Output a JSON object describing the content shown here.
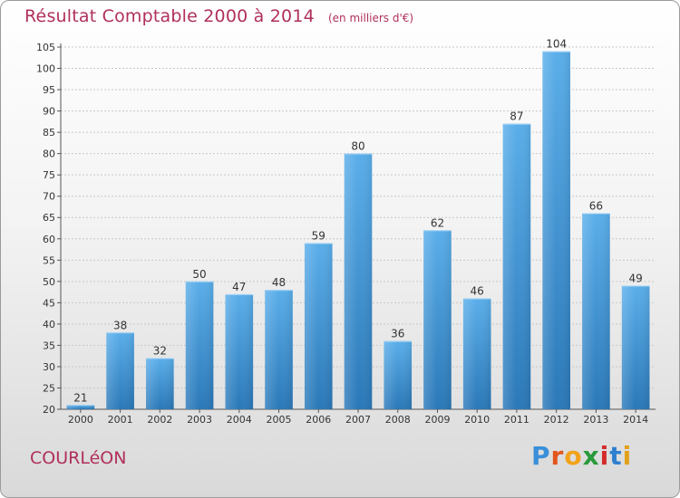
{
  "chart_data": {
    "type": "bar",
    "title": "Résultat Comptable 2000 à 2014",
    "subtitle": "(en milliers d'€)",
    "xlabel": "",
    "ylabel": "",
    "categories": [
      "2000",
      "2001",
      "2002",
      "2003",
      "2004",
      "2005",
      "2006",
      "2007",
      "2008",
      "2009",
      "2010",
      "2011",
      "2012",
      "2013",
      "2014"
    ],
    "values": [
      21,
      38,
      32,
      50,
      47,
      48,
      59,
      80,
      36,
      62,
      46,
      87,
      104,
      66,
      49
    ],
    "ylim": [
      20,
      105
    ],
    "yticks": [
      20,
      25,
      30,
      35,
      40,
      45,
      50,
      55,
      60,
      65,
      70,
      75,
      80,
      85,
      90,
      95,
      100,
      105
    ],
    "grid": true,
    "legend": "none",
    "bar_color_top": "#5aaeea",
    "bar_color_bottom": "#2a78b8",
    "show_data_labels": true
  },
  "footer": {
    "commune": "COURLéON",
    "brand_letters": [
      "P",
      "r",
      "o",
      "x",
      "i",
      "t",
      "i"
    ],
    "brand_colors": [
      "#3a8fd9",
      "#e2561b",
      "#f2a21a",
      "#2a9a3a",
      "#d42b2b",
      "#2f7fd0",
      "#e2a11b"
    ]
  },
  "colors": {
    "title": "#b0305a",
    "grid": "#c8c8c8"
  }
}
